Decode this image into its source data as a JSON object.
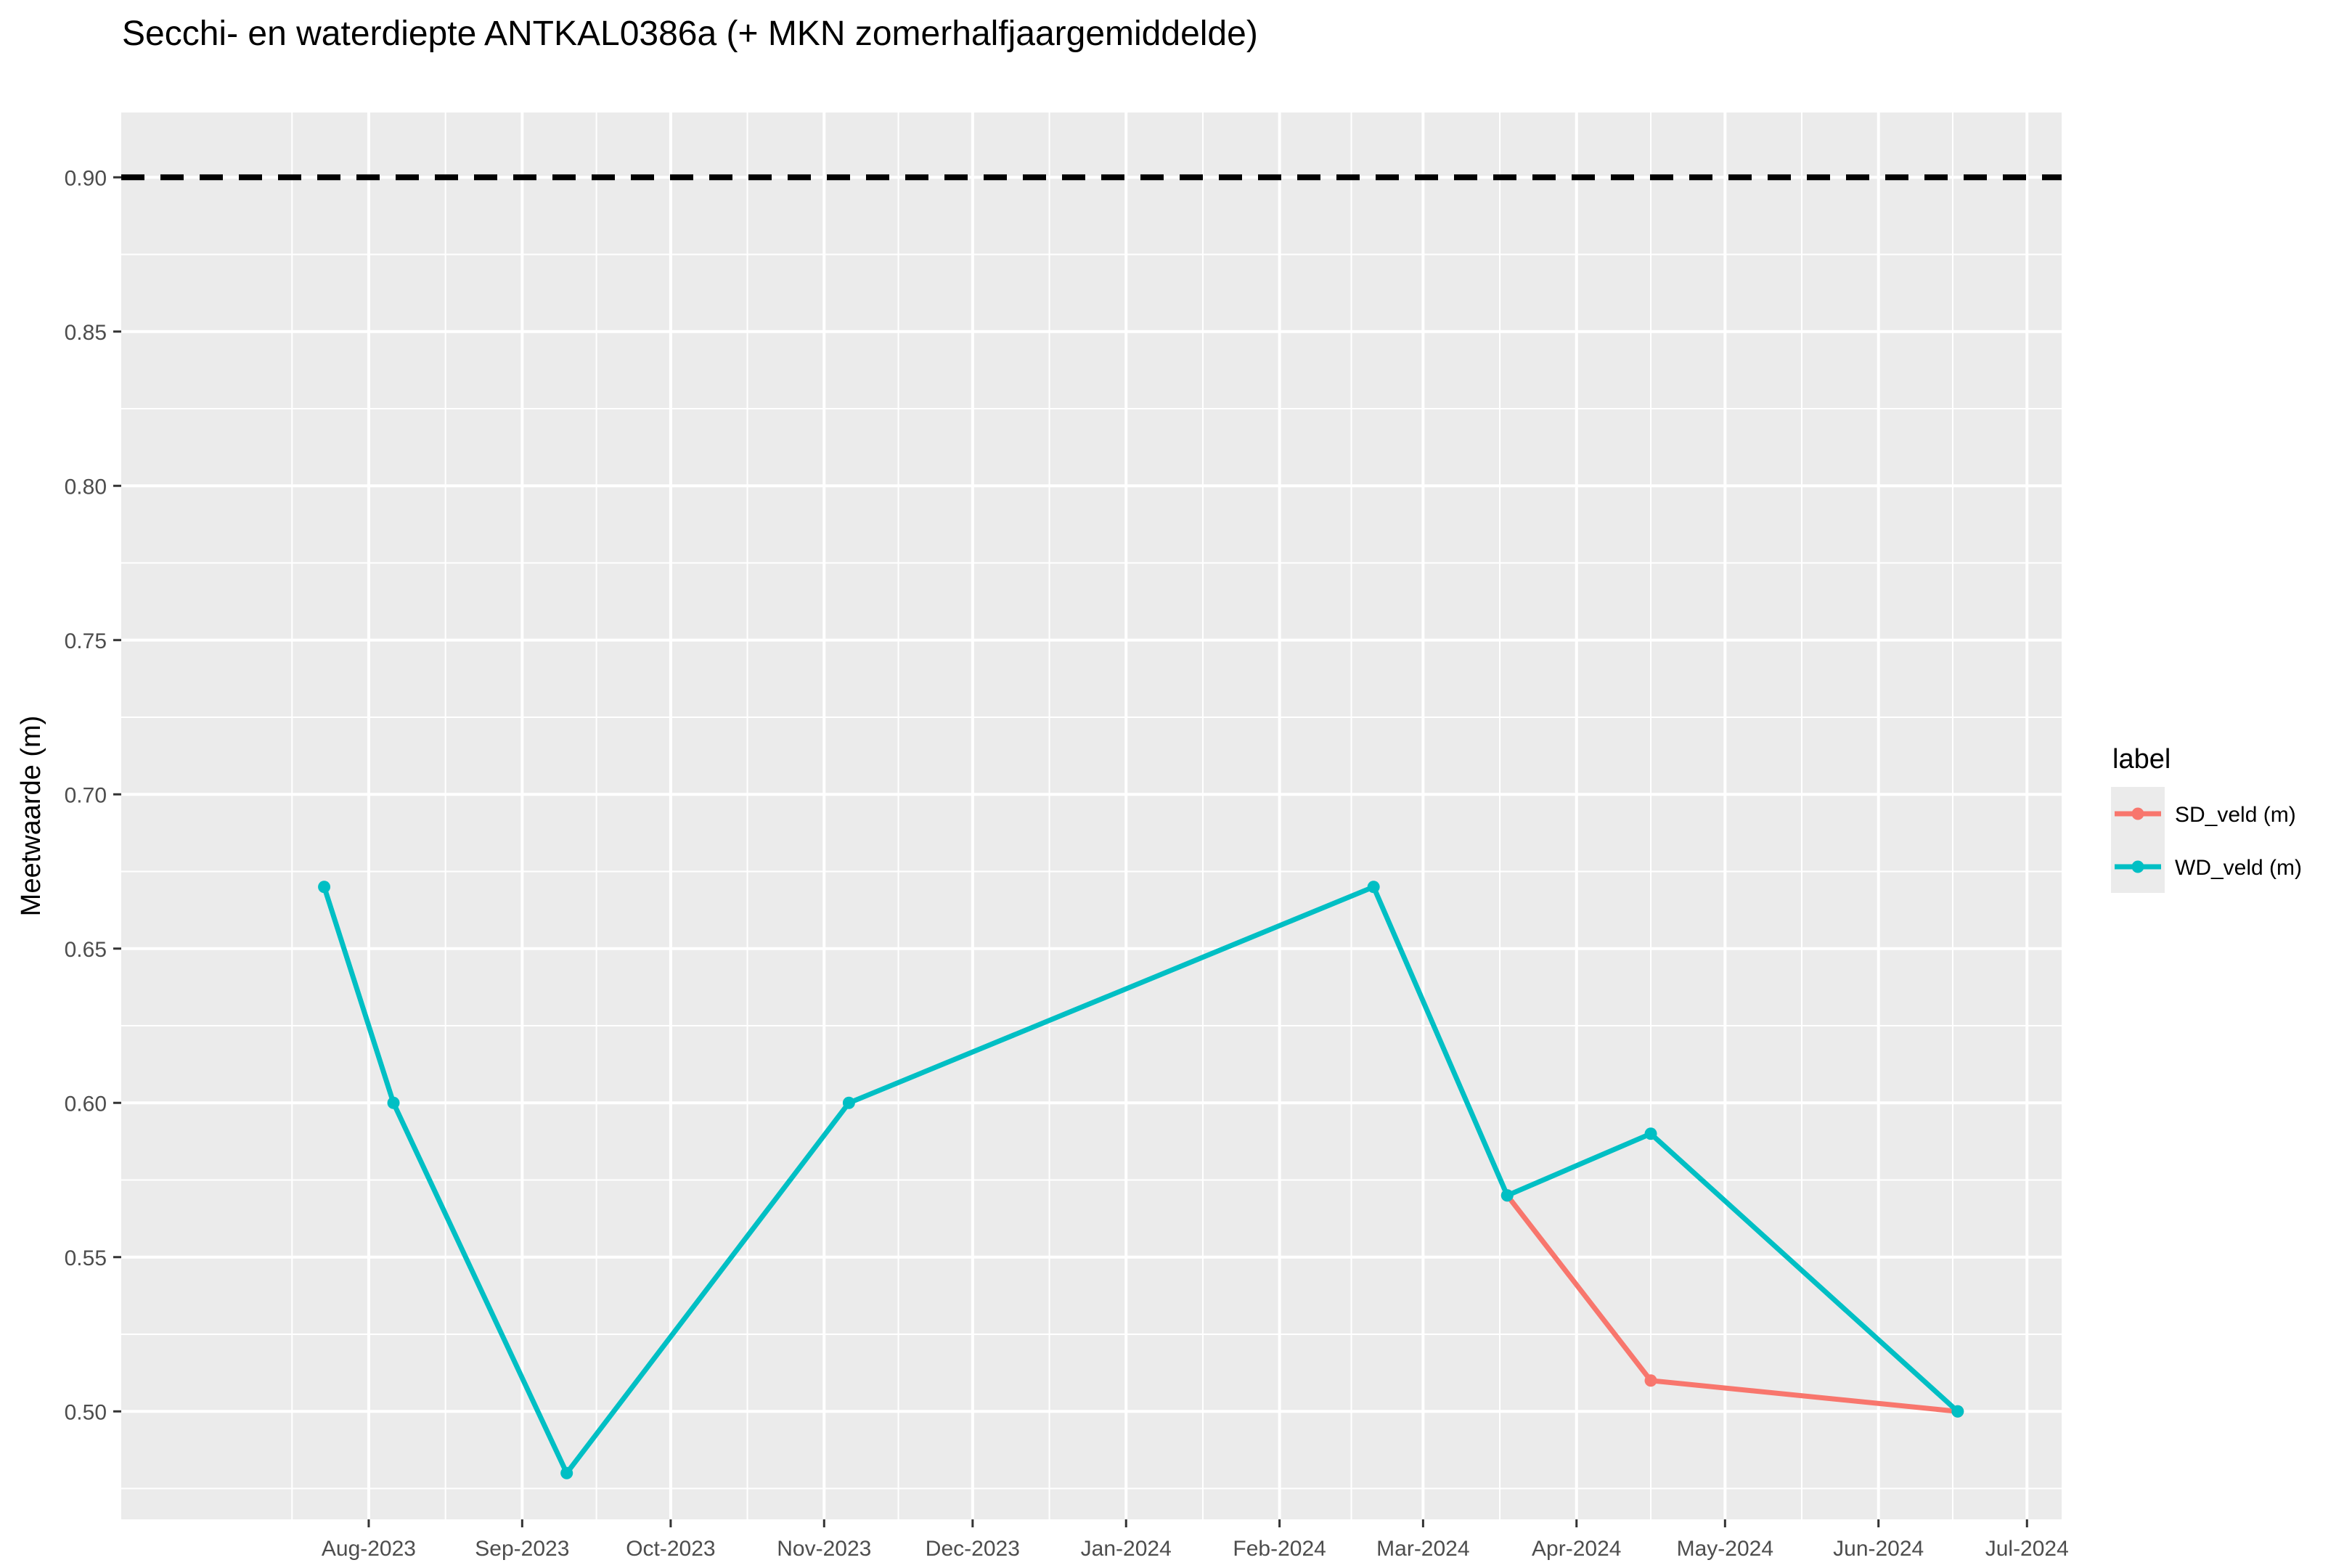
{
  "chart_data": {
    "type": "line",
    "title": "Secchi- en waterdiepte ANTKAL0386a (+ MKN  zomerhalfjaargemiddelde)",
    "xlabel": "",
    "ylabel": "Meetwaarde (m)",
    "x_type": "date",
    "xlim": [
      "2023-06-12",
      "2024-07-08"
    ],
    "ylim": [
      0.465,
      0.921
    ],
    "x_ticks": [
      {
        "date": "2023-08-01",
        "label": "Aug-2023"
      },
      {
        "date": "2023-09-01",
        "label": "Sep-2023"
      },
      {
        "date": "2023-10-01",
        "label": "Oct-2023"
      },
      {
        "date": "2023-11-01",
        "label": "Nov-2023"
      },
      {
        "date": "2023-12-01",
        "label": "Dec-2023"
      },
      {
        "date": "2024-01-01",
        "label": "Jan-2024"
      },
      {
        "date": "2024-02-01",
        "label": "Feb-2024"
      },
      {
        "date": "2024-03-01",
        "label": "Mar-2024"
      },
      {
        "date": "2024-04-01",
        "label": "Apr-2024"
      },
      {
        "date": "2024-05-01",
        "label": "May-2024"
      },
      {
        "date": "2024-06-01",
        "label": "Jun-2024"
      },
      {
        "date": "2024-07-01",
        "label": "Jul-2024"
      }
    ],
    "y_ticks": [
      {
        "value": 0.5,
        "label": "0.50"
      },
      {
        "value": 0.55,
        "label": "0.55"
      },
      {
        "value": 0.6,
        "label": "0.60"
      },
      {
        "value": 0.65,
        "label": "0.65"
      },
      {
        "value": 0.7,
        "label": "0.70"
      },
      {
        "value": 0.75,
        "label": "0.75"
      },
      {
        "value": 0.8,
        "label": "0.80"
      },
      {
        "value": 0.85,
        "label": "0.85"
      },
      {
        "value": 0.9,
        "label": "0.90"
      }
    ],
    "series": [
      {
        "name": "SD_veld (m)",
        "color": "#F8766D",
        "points": [
          {
            "x": "2024-03-18",
            "y": 0.57
          },
          {
            "x": "2024-04-16",
            "y": 0.51
          },
          {
            "x": "2024-06-17",
            "y": 0.5
          }
        ]
      },
      {
        "name": "WD_veld (m)",
        "color": "#00BFC4",
        "points": [
          {
            "x": "2023-07-23",
            "y": 0.67
          },
          {
            "x": "2023-08-06",
            "y": 0.6
          },
          {
            "x": "2023-09-10",
            "y": 0.48
          },
          {
            "x": "2023-11-06",
            "y": 0.6
          },
          {
            "x": "2024-02-20",
            "y": 0.67
          },
          {
            "x": "2024-03-18",
            "y": 0.57
          },
          {
            "x": "2024-04-16",
            "y": 0.59
          },
          {
            "x": "2024-06-17",
            "y": 0.5
          }
        ]
      }
    ],
    "reference_line": {
      "y": 0.9,
      "style": "dashed",
      "color": "#000000"
    },
    "grid": true,
    "legend": {
      "title": "label",
      "position": "right"
    },
    "colors": {
      "panel": "#EBEBEB",
      "grid": "#FFFFFF",
      "tick_text": "#4D4D4D"
    }
  }
}
